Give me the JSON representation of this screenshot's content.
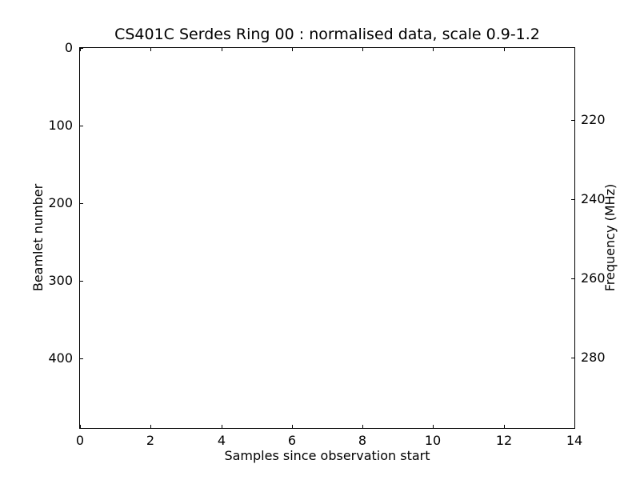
{
  "chart_data": {
    "type": "heatmap",
    "title": "CS401C Serdes Ring 00 : normalised data, scale 0.9-1.2",
    "xlabel": "Samples since observation start",
    "ylabel_left": "Beamlet number",
    "ylabel_right": "Frequency (MHz)",
    "xlim": [
      0,
      14
    ],
    "ylim_left": [
      0,
      490
    ],
    "ylim_right": [
      201.9,
      297.8
    ],
    "x_ticks": [
      0,
      2,
      4,
      6,
      8,
      10,
      12,
      14
    ],
    "y_ticks_left": [
      0,
      100,
      200,
      300,
      400
    ],
    "y_ticks_right": [
      220,
      240,
      260,
      280
    ],
    "grid": false,
    "legend": false,
    "normalisation_scale": "0.9-1.2",
    "values": []
  }
}
